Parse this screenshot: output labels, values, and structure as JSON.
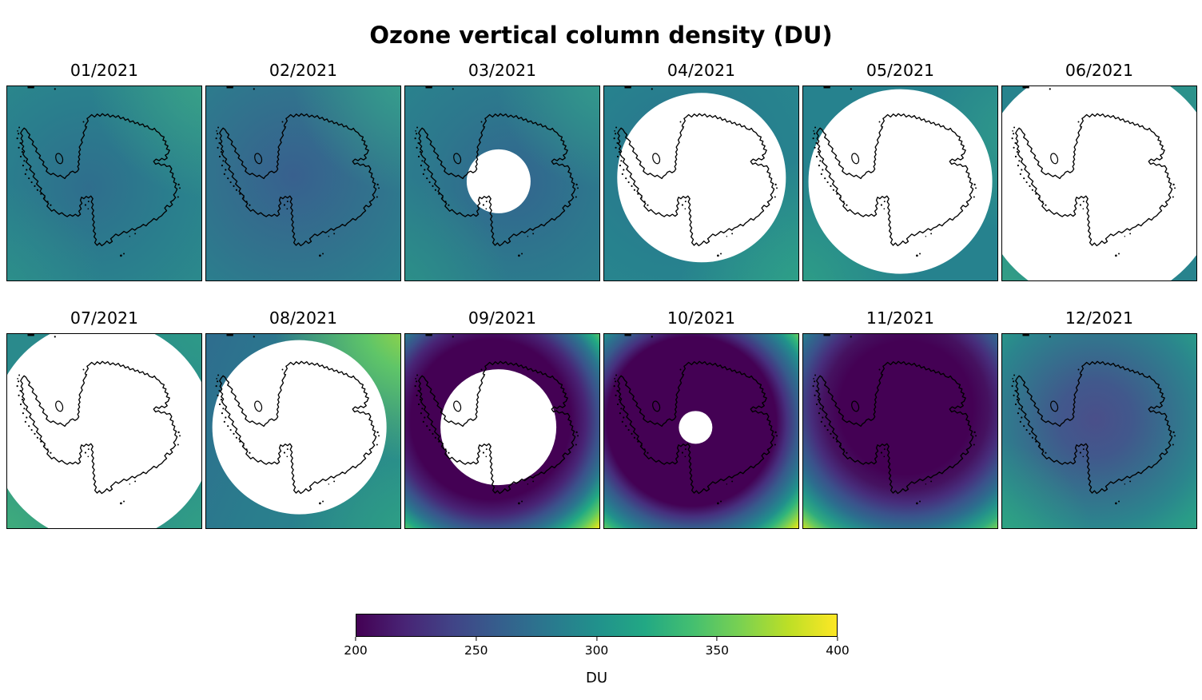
{
  "figure": {
    "title": "Ozone vertical column density (DU)"
  },
  "colorbar": {
    "label": "DU",
    "ticks": [
      200,
      250,
      300,
      350,
      400
    ],
    "min": 200,
    "max": 400,
    "colormap": "viridis",
    "viridis_stops": [
      "#440154",
      "#482475",
      "#414487",
      "#355f8d",
      "#2a788e",
      "#21918c",
      "#22a884",
      "#44bf70",
      "#7ad151",
      "#bddf26",
      "#fde725"
    ]
  },
  "panels": [
    {
      "label": "01/2021",
      "no_data_circle": null
    },
    {
      "label": "02/2021",
      "no_data_circle": null
    },
    {
      "label": "03/2021",
      "no_data_circle": {
        "cx_pct": 48,
        "cy_pct": 49,
        "r_pct": 16.5
      }
    },
    {
      "label": "04/2021",
      "no_data_circle": {
        "cx_pct": 50,
        "cy_pct": 47,
        "r_pct": 43.5
      }
    },
    {
      "label": "05/2021",
      "no_data_circle": {
        "cx_pct": 50,
        "cy_pct": 49,
        "r_pct": 47.5
      }
    },
    {
      "label": "06/2021",
      "no_data_circle": {
        "cx_pct": 50,
        "cy_pct": 50,
        "r_pct": 62
      }
    },
    {
      "label": "07/2021",
      "no_data_circle": {
        "cx_pct": 49,
        "cy_pct": 50,
        "r_pct": 57
      }
    },
    {
      "label": "08/2021",
      "no_data_circle": {
        "cx_pct": 48,
        "cy_pct": 48,
        "r_pct": 45
      }
    },
    {
      "label": "09/2021",
      "no_data_circle": {
        "cx_pct": 48,
        "cy_pct": 48,
        "r_pct": 30
      }
    },
    {
      "label": "10/2021",
      "no_data_circle": {
        "cx_pct": 47,
        "cy_pct": 48,
        "r_pct": 8.5
      }
    },
    {
      "label": "11/2021",
      "no_data_circle": null
    },
    {
      "label": "12/2021",
      "no_data_circle": null
    }
  ],
  "chart_data": {
    "type": "heatmap",
    "title": "Ozone vertical column density (DU)",
    "facet_grid": {
      "rows": 2,
      "cols": 6
    },
    "region": "Antarctica (south polar stereographic view with coastline overlay)",
    "colorbar": {
      "label": "DU",
      "range": [
        200,
        400
      ],
      "ticks": [
        200,
        250,
        300,
        350,
        400
      ],
      "colormap": "viridis",
      "orientation": "horizontal"
    },
    "facets": [
      {
        "month": "01/2021",
        "du_min_visible": 270,
        "du_max_visible": 325,
        "du_over_pole": 278,
        "no_data_circle_radius_frac": 0.0,
        "pattern": "uniform teal field, slightly darker over continent, greener NE corner"
      },
      {
        "month": "02/2021",
        "du_min_visible": 260,
        "du_max_visible": 320,
        "du_over_pole": 265,
        "no_data_circle_radius_frac": 0.0,
        "pattern": "bluer center over continent, teal edges, greener NE corner"
      },
      {
        "month": "03/2021",
        "du_min_visible": 265,
        "du_max_visible": 315,
        "du_over_pole": null,
        "no_data_circle_radius_frac": 0.17,
        "pattern": "teal field, small polar-night no-data disk at pole"
      },
      {
        "month": "04/2021",
        "du_min_visible": 285,
        "du_max_visible": 315,
        "du_over_pole": null,
        "no_data_circle_radius_frac": 0.44,
        "pattern": "teal ring of data, large white no-data disk covering continent"
      },
      {
        "month": "05/2021",
        "du_min_visible": 290,
        "du_max_visible": 320,
        "du_over_pole": null,
        "no_data_circle_radius_frac": 0.48,
        "pattern": "teal corners only, very large white no-data disk"
      },
      {
        "month": "06/2021",
        "du_min_visible": 290,
        "du_max_visible": 325,
        "du_over_pole": null,
        "no_data_circle_radius_frac": 0.62,
        "pattern": "maximum polar-night disk, only corner arcs show data"
      },
      {
        "month": "07/2021",
        "du_min_visible": 295,
        "du_max_visible": 340,
        "du_over_pole": null,
        "no_data_circle_radius_frac": 0.57,
        "pattern": "greener teal corner arcs, large white no-data disk"
      },
      {
        "month": "08/2021",
        "du_min_visible": 280,
        "du_max_visible": 365,
        "du_over_pole": null,
        "no_data_circle_radius_frac": 0.45,
        "pattern": "shrinking disk; yellow-green NE corner, dark teal W edge"
      },
      {
        "month": "09/2021",
        "du_min_visible": 200,
        "du_max_visible": 400,
        "du_over_pole": null,
        "no_data_circle_radius_frac": 0.3,
        "pattern": "deep-purple ozone-hole ring (~200-220 DU) around white disk; teal NW, bright yellow SE corner (~400 DU)"
      },
      {
        "month": "10/2021",
        "du_min_visible": 200,
        "du_max_visible": 400,
        "du_over_pole": 205,
        "no_data_circle_radius_frac": 0.085,
        "pattern": "broad deep-purple ozone hole covering continent, tiny white polar disk, yellow SE corner"
      },
      {
        "month": "11/2021",
        "du_min_visible": 205,
        "du_max_visible": 380,
        "du_over_pole": 210,
        "no_data_circle_radius_frac": 0.0,
        "pattern": "purple hole persists over continent, green-yellow S and SE edges"
      },
      {
        "month": "12/2021",
        "du_min_visible": 250,
        "du_max_visible": 320,
        "du_over_pole": 255,
        "no_data_circle_radius_frac": 0.0,
        "pattern": "recovering: muted blue-purple center blending to teal-green edges"
      }
    ]
  }
}
